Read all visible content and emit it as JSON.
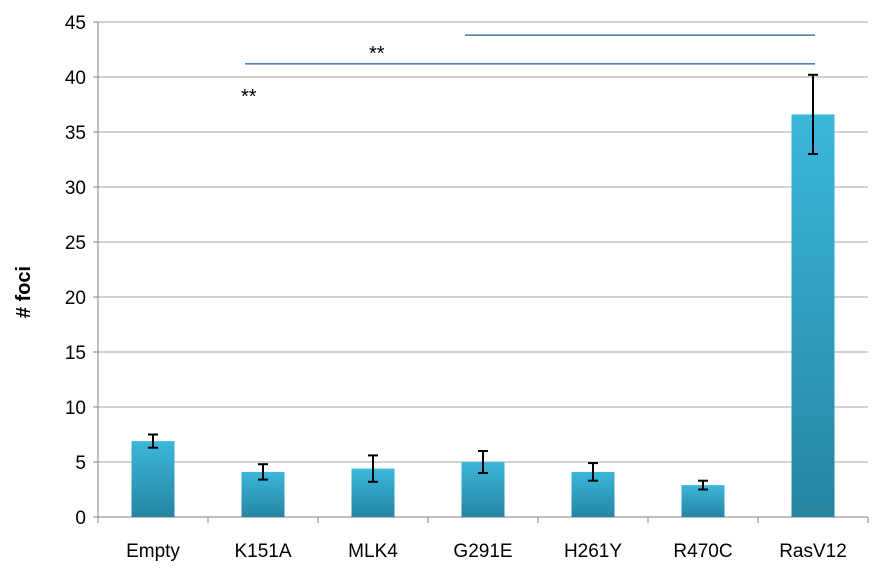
{
  "chart_data": {
    "type": "bar",
    "title": "",
    "xlabel": "",
    "ylabel": "# foci",
    "ylim": [
      0,
      45
    ],
    "y_ticks": [
      0,
      5,
      10,
      15,
      20,
      25,
      30,
      35,
      40,
      45
    ],
    "grid": true,
    "legend": "none",
    "categories": [
      "Empty",
      "K151A",
      "MLK4",
      "G291E",
      "H261Y",
      "R470C",
      "RasV12"
    ],
    "values": [
      6.9,
      4.1,
      4.4,
      5.0,
      4.1,
      2.9,
      36.6
    ],
    "error": [
      0.6,
      0.7,
      1.2,
      1.0,
      0.8,
      0.4,
      3.6
    ],
    "colors": {
      "bar_top": "#3cb7dc",
      "bar_bottom": "#2585a1",
      "grid": "#a6a6a6",
      "significance_line": "#4f81bd",
      "error_bar": "#000000"
    },
    "annotations": [
      {
        "label": "**",
        "from": "K151A",
        "to": "RasV12",
        "y": 41.2
      },
      {
        "label": "**",
        "from": "G291E",
        "to": "RasV12",
        "y": 43.8
      }
    ]
  }
}
